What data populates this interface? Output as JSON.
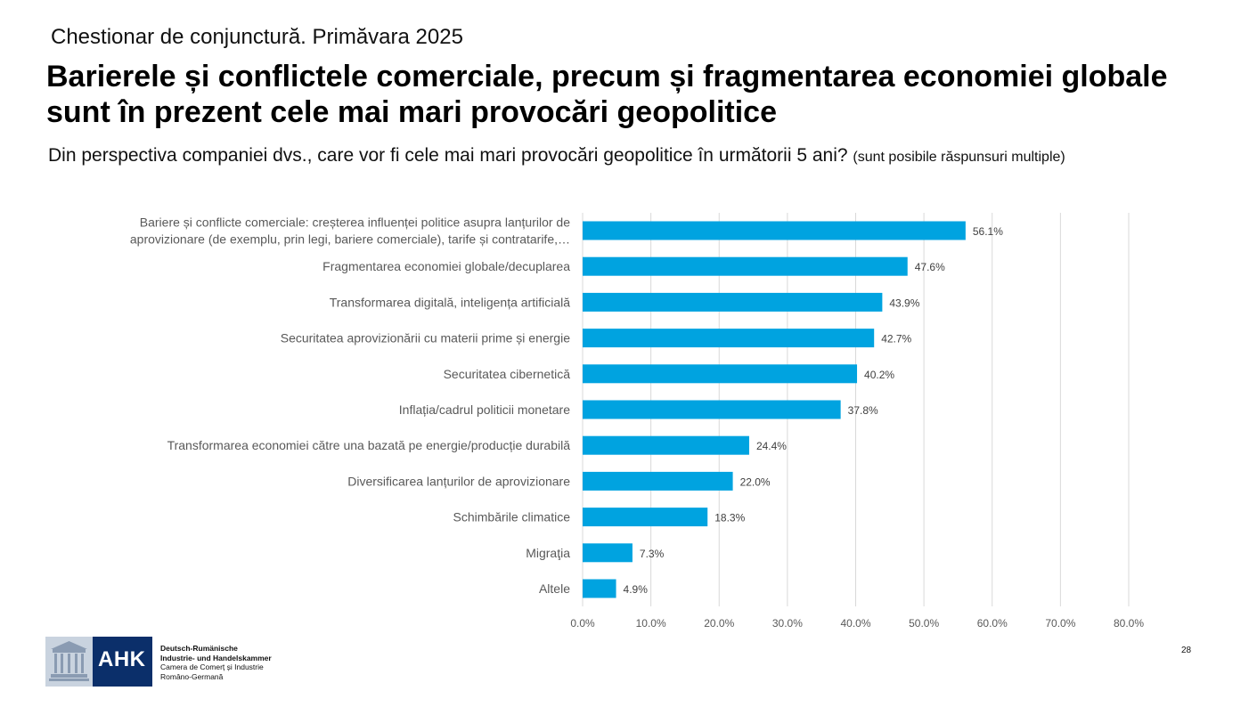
{
  "header": {
    "survey": "Chestionar de conjunctură. Primăvara 2025",
    "title": "Barierele și conflictele comerciale, precum și fragmentarea economiei globale sunt  în prezent cele mai mari provocări geopolitice",
    "question": "Din perspectiva companiei dvs., care vor fi cele mai mari provocări geopolitice în următorii 5 ani?",
    "question_note": "(sunt posibile răspunsuri multiple)"
  },
  "chart_data": {
    "type": "bar",
    "orientation": "horizontal",
    "categories": [
      [
        "Bariere și conflicte comerciale: creșterea influenței politice asupra lanțurilor de",
        "aprovizionare (de exemplu, prin legi, bariere comerciale), tarife și contratarife,…"
      ],
      [
        "Fragmentarea economiei globale/decuplarea"
      ],
      [
        "Transformarea digitală, inteligența artificială"
      ],
      [
        "Securitatea aprovizionării cu materii prime și energie"
      ],
      [
        "Securitatea cibernetică"
      ],
      [
        "Inflația/cadrul politicii monetare"
      ],
      [
        "Transformarea economiei către una bazată pe energie/producție durabilă"
      ],
      [
        "Diversificarea lanțurilor de aprovizionare"
      ],
      [
        "Schimbările climatice"
      ],
      [
        "Migraţia"
      ],
      [
        "Altele"
      ]
    ],
    "values": [
      56.1,
      47.6,
      43.9,
      42.7,
      40.2,
      37.8,
      24.4,
      22.0,
      18.3,
      7.3,
      4.9
    ],
    "value_labels": [
      "56.1%",
      "47.6%",
      "43.9%",
      "42.7%",
      "40.2%",
      "37.8%",
      "24.4%",
      "22.0%",
      "18.3%",
      "7.3%",
      "4.9%"
    ],
    "xlim": [
      0,
      80
    ],
    "xticks": [
      "0.0%",
      "10.0%",
      "20.0%",
      "30.0%",
      "40.0%",
      "50.0%",
      "60.0%",
      "70.0%",
      "80.0%"
    ],
    "grid": "vertical",
    "bar_color": "#00a3e0",
    "legend": "none"
  },
  "footer": {
    "logo_text": "AHK",
    "org_lines": [
      "Deutsch-Rumänische",
      "Industrie- und Handelskammer",
      "Camera de Comerț și Industrie",
      "Româno-Germană"
    ],
    "page_number": "28"
  }
}
